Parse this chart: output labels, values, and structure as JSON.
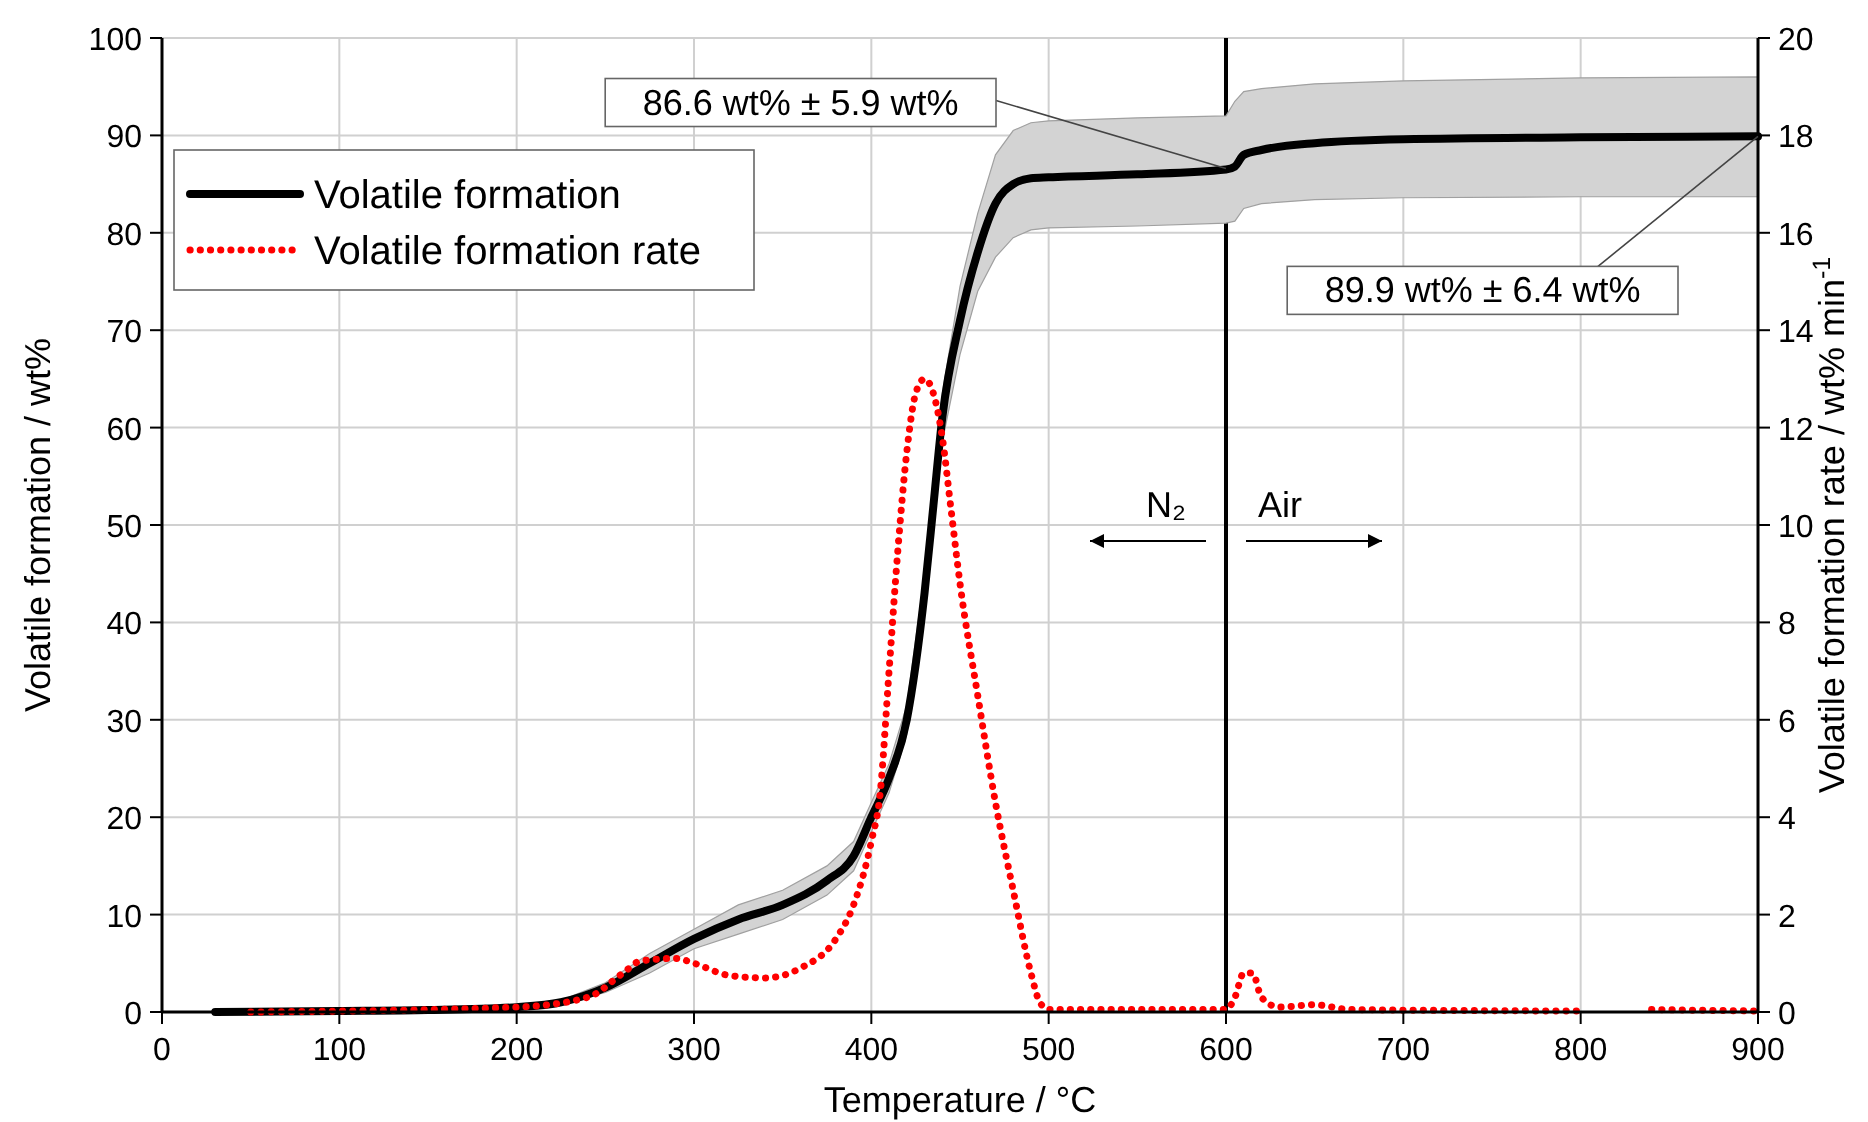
{
  "chart_data": {
    "type": "line",
    "xlabel": "Temperature  /  °C",
    "ylabel": "Volatile formation  /  wt%",
    "y2label": "Volatile formation rate  /  wt% min$^{-1}$",
    "xlim": [
      0,
      900
    ],
    "xticks": [
      0,
      100,
      200,
      300,
      400,
      500,
      600,
      700,
      800,
      900
    ],
    "ylim": [
      0,
      100
    ],
    "yticks": [
      0,
      10,
      20,
      30,
      40,
      50,
      60,
      70,
      80,
      90,
      100
    ],
    "y2lim": [
      0,
      20
    ],
    "y2ticks": [
      0,
      2,
      4,
      6,
      8,
      10,
      12,
      14,
      16,
      18,
      20
    ],
    "grid": true,
    "legend": "top left",
    "series": [
      {
        "name": "Volatile formation",
        "color": "#000000",
        "line_style": "solid",
        "x": [
          30,
          100,
          150,
          200,
          225,
          250,
          275,
          300,
          325,
          350,
          375,
          390,
          400,
          410,
          420,
          430,
          435,
          440,
          450,
          460,
          470,
          480,
          490,
          500,
          550,
          600,
          605,
          610,
          620,
          650,
          700,
          800,
          900
        ],
        "values": [
          0,
          0.1,
          0.2,
          0.5,
          1,
          2.5,
          5,
          7.5,
          9.5,
          11,
          13.5,
          16,
          20,
          24,
          30,
          43,
          52,
          61,
          71,
          78,
          83,
          85,
          85.6,
          85.7,
          86,
          86.5,
          86.8,
          88,
          88.5,
          89.2,
          89.6,
          89.8,
          89.9
        ],
        "lower": [
          0,
          0.1,
          0.2,
          0.4,
          0.8,
          2,
          4,
          6.5,
          8,
          9.5,
          12,
          14.5,
          18.5,
          22.5,
          28.5,
          41,
          50,
          58.5,
          67.5,
          74,
          77.5,
          79.5,
          80.3,
          80.5,
          80.7,
          81,
          81.2,
          82.5,
          83,
          83.4,
          83.6,
          83.7,
          83.7
        ],
        "upper": [
          0,
          0.1,
          0.2,
          0.6,
          1.2,
          3,
          6,
          8.5,
          11,
          12.5,
          15,
          17.5,
          21.5,
          25.5,
          31.5,
          45,
          54,
          63.5,
          74.5,
          82,
          88,
          90.5,
          91.3,
          91.5,
          91.8,
          92,
          93.5,
          94.5,
          94.8,
          95.3,
          95.6,
          95.9,
          96
        ]
      },
      {
        "name": "Volatile formation rate",
        "color": "#ff0000",
        "axis": "y2",
        "line_style": "dotted",
        "x": [
          50,
          200,
          240,
          260,
          270,
          290,
          300,
          320,
          340,
          360,
          380,
          390,
          400,
          405,
          410,
          415,
          420,
          425,
          430,
          435,
          440,
          445,
          450,
          460,
          470,
          480,
          490,
          495,
          500,
          550,
          600,
          605,
          610,
          615,
          620,
          630,
          650,
          670,
          800,
          815,
          840,
          900
        ],
        "values": [
          0,
          0.1,
          0.3,
          0.8,
          1.05,
          1.1,
          1,
          0.75,
          0.7,
          0.9,
          1.5,
          2.2,
          3.5,
          4.5,
          7,
          9.5,
          11.5,
          12.7,
          13,
          12.7,
          11.8,
          10.3,
          8.8,
          6.5,
          4.3,
          2.5,
          0.8,
          0.2,
          0.05,
          0.05,
          0.05,
          0.3,
          0.8,
          0.8,
          0.3,
          0.1,
          0.15,
          0.05,
          0.02,
          null,
          0.05,
          0.02
        ]
      }
    ],
    "ref_lines": [
      {
        "axis": "x",
        "value": 600,
        "color": "#000000"
      }
    ],
    "annotations": [
      {
        "text": "86.6 wt% ± 5.9 wt%",
        "x": 600,
        "y": 86.6
      },
      {
        "text": "89.9 wt% ± 6.4 wt%",
        "x": 900,
        "y": 89.9
      },
      "N₂",
      "Air"
    ]
  }
}
